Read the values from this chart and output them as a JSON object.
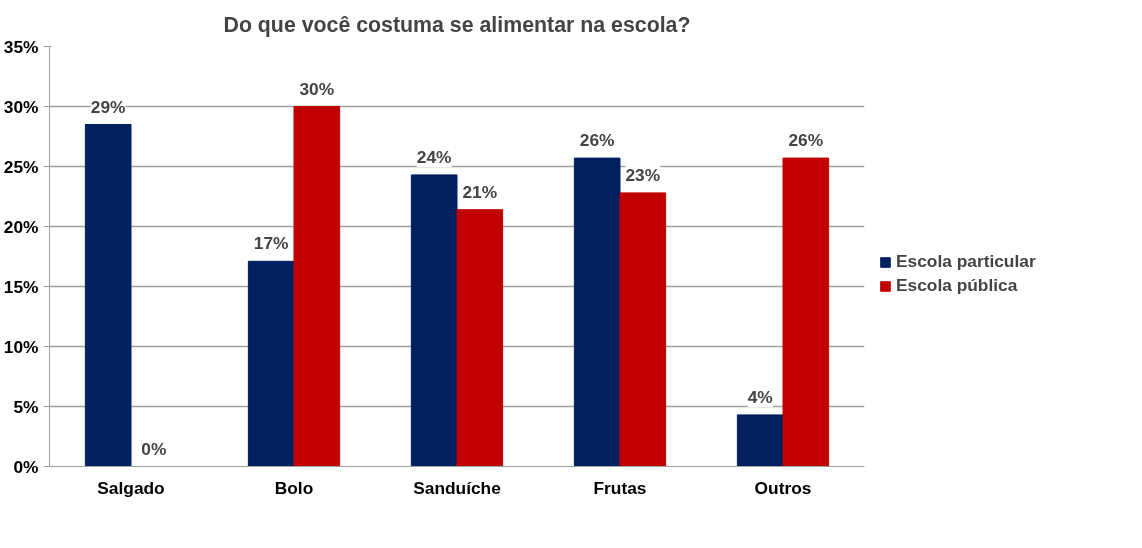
{
  "chart_data": {
    "type": "bar",
    "title": "Do que você costuma se alimentar na escola?",
    "categories": [
      "Salgado",
      "Bolo",
      "Sanduíche",
      "Frutas",
      "Outros"
    ],
    "series": [
      {
        "name": "Escola particular",
        "color": "#002060",
        "values": [
          28.5,
          17.1,
          24.3,
          25.7,
          4.3
        ],
        "value_labels": [
          "29%",
          "17%",
          "24%",
          "26%",
          "4%"
        ]
      },
      {
        "name": "Escola pública",
        "color": "#c00000",
        "values": [
          0,
          30.0,
          21.4,
          22.8,
          25.7
        ],
        "value_labels": [
          "0%",
          "30%",
          "21%",
          "23%",
          "26%"
        ]
      }
    ],
    "ylim": [
      0,
      35
    ],
    "yticks": [
      {
        "value": 0,
        "label": "0%"
      },
      {
        "value": 5,
        "label": "5%"
      },
      {
        "value": 10,
        "label": "10%"
      },
      {
        "value": 15,
        "label": "15%"
      },
      {
        "value": 20,
        "label": "20%"
      },
      {
        "value": 25,
        "label": "25%"
      },
      {
        "value": 30,
        "label": "30%"
      },
      {
        "value": 35,
        "label": "35%"
      }
    ],
    "grid": "y",
    "legend": "right"
  }
}
